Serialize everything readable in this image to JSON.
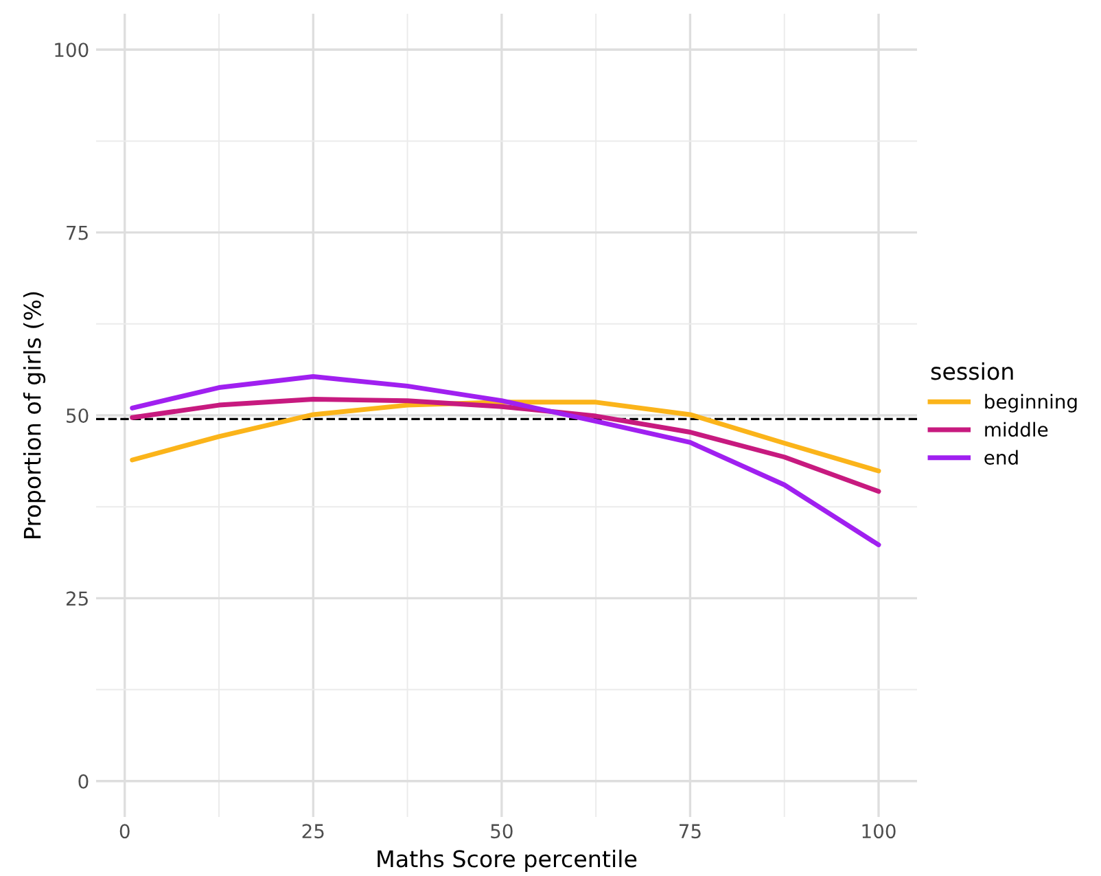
{
  "chart_data": {
    "type": "line",
    "xlabel": "Maths Score percentile",
    "ylabel": "Proportion of girls (%)",
    "legend_title": "session",
    "xlim": [
      -3.8,
      105.1
    ],
    "ylim": [
      -4.9,
      104.9
    ],
    "xticks": [
      0,
      25,
      50,
      75,
      100
    ],
    "yticks": [
      0,
      25,
      50,
      75,
      100
    ],
    "grid": true,
    "legend": "right",
    "line_style": "solid",
    "ref_lines": [
      {
        "axis": "y",
        "value": 49.5,
        "label": null,
        "color": "#000000",
        "line_style": "dashed"
      }
    ],
    "x": [
      1,
      12.5,
      25,
      37.5,
      50,
      62.5,
      75,
      87.5,
      100
    ],
    "series": [
      {
        "name": "beginning",
        "color": "#fbb41a",
        "values": [
          43.9,
          47.1,
          50.1,
          51.4,
          51.8,
          51.8,
          50.1,
          46.2,
          42.4
        ]
      },
      {
        "name": "middle",
        "color": "#c71a7f",
        "values": [
          49.7,
          51.4,
          52.2,
          52.0,
          51.2,
          49.9,
          47.7,
          44.3,
          39.6
        ]
      },
      {
        "name": "end",
        "color": "#a020f0",
        "values": [
          51.0,
          53.8,
          55.3,
          54.0,
          52.0,
          49.2,
          46.3,
          40.5,
          32.3
        ]
      }
    ]
  }
}
